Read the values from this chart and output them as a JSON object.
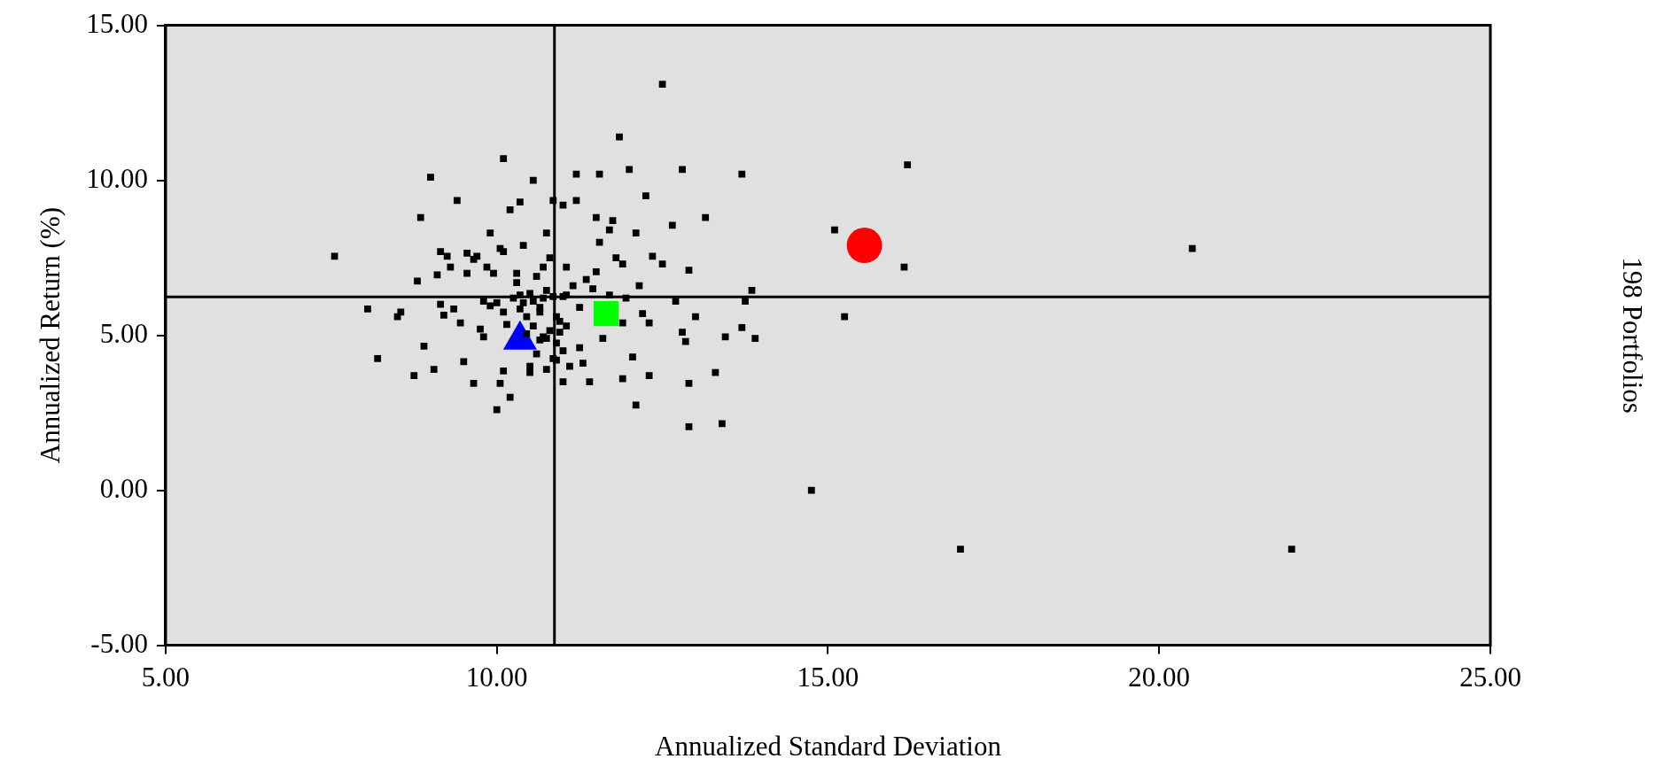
{
  "chart_data": {
    "type": "scatter",
    "xlabel": "Annualized Standard Deviation",
    "ylabel": "Annualized Return (%)",
    "annotations": [
      "198 Portfolios"
    ],
    "xlim": [
      5,
      25
    ],
    "xticks": [
      {
        "value": 5,
        "label": "5.00"
      },
      {
        "value": 10,
        "label": "10.00"
      },
      {
        "value": 15,
        "label": "15.00"
      },
      {
        "value": 20,
        "label": "20.00"
      },
      {
        "value": 25,
        "label": "25.00"
      }
    ],
    "ylim": [
      -5,
      15
    ],
    "yticks": [
      {
        "value": -5,
        "label": "-5.00"
      },
      {
        "value": 0,
        "label": "0.00"
      },
      {
        "value": 5,
        "label": "5.00"
      },
      {
        "value": 10,
        "label": "10.00"
      },
      {
        "value": 15,
        "label": "15.00"
      }
    ],
    "grid": false,
    "legend": false,
    "ref_lines": [
      {
        "axis": "x",
        "value": 10.87,
        "color": "#000000"
      },
      {
        "axis": "y",
        "value": 6.24,
        "color": "#000000"
      }
    ],
    "series": [
      {
        "color": "#000000",
        "marker": "square",
        "x": [
          7.55,
          8.05,
          8.2,
          8.5,
          8.55,
          8.75,
          8.8,
          8.85,
          8.9,
          9.0,
          9.05,
          9.1,
          9.15,
          9.15,
          9.25,
          9.2,
          9.3,
          9.35,
          9.4,
          9.45,
          9.5,
          9.55,
          9.55,
          9.65,
          9.65,
          9.7,
          9.75,
          9.8,
          9.8,
          9.85,
          9.9,
          9.9,
          9.95,
          10.0,
          10.0,
          10.05,
          10.05,
          10.1,
          10.1,
          10.1,
          10.1,
          10.15,
          10.2,
          10.2,
          10.25,
          10.3,
          10.3,
          10.35,
          10.35,
          10.4,
          10.4,
          10.45,
          10.5,
          10.5,
          10.5,
          10.55,
          10.55,
          10.6,
          10.65,
          10.65,
          10.7,
          10.7,
          10.75,
          10.75,
          10.75,
          10.8,
          10.85,
          10.85,
          10.9,
          10.9,
          10.95,
          11.0,
          11.0,
          11.0,
          11.05,
          11.05,
          11.1,
          11.15,
          11.2,
          11.2,
          11.25,
          11.25,
          11.3,
          11.35,
          11.4,
          11.45,
          11.5,
          11.5,
          11.55,
          11.55,
          11.6,
          11.7,
          11.7,
          11.75,
          11.8,
          11.85,
          11.9,
          11.9,
          11.9,
          11.95,
          12.0,
          12.05,
          12.1,
          12.1,
          12.15,
          12.2,
          12.25,
          12.3,
          12.3,
          12.35,
          12.5,
          12.5,
          12.65,
          12.7,
          12.8,
          12.8,
          12.85,
          12.9,
          12.9,
          12.9,
          13.0,
          13.15,
          13.3,
          13.4,
          13.45,
          13.7,
          13.7,
          13.75,
          13.85,
          13.9,
          14.75,
          15.1,
          15.25,
          16.15,
          16.2,
          17.0,
          20.5,
          22.0,
          10.65,
          10.45,
          10.95,
          10.8,
          10.7,
          10.9,
          10.6,
          10.85,
          11.0,
          10.55,
          10.75,
          11.05,
          10.35
        ],
        "values": [
          7.55,
          5.85,
          4.25,
          5.6,
          5.75,
          3.7,
          6.75,
          8.8,
          4.65,
          10.1,
          3.9,
          6.95,
          7.7,
          6.0,
          7.55,
          5.65,
          7.2,
          5.85,
          9.35,
          5.4,
          4.15,
          7.0,
          7.65,
          7.45,
          3.45,
          7.55,
          5.2,
          6.1,
          4.95,
          7.2,
          8.3,
          5.95,
          7.0,
          6.05,
          2.6,
          7.8,
          3.45,
          10.7,
          7.7,
          5.75,
          3.85,
          5.35,
          9.05,
          3.0,
          6.2,
          7.0,
          6.7,
          9.3,
          5.85,
          7.9,
          6.05,
          5.05,
          6.35,
          4.0,
          3.8,
          10.0,
          5.3,
          6.9,
          4.85,
          5.9,
          7.2,
          6.2,
          8.3,
          4.9,
          3.9,
          7.5,
          9.35,
          6.25,
          5.6,
          4.2,
          5.1,
          9.2,
          6.25,
          3.5,
          7.2,
          5.3,
          4.0,
          6.6,
          10.2,
          9.35,
          5.9,
          4.6,
          4.1,
          6.8,
          3.5,
          6.5,
          8.8,
          7.05,
          10.2,
          8.0,
          4.9,
          8.4,
          6.3,
          8.7,
          7.5,
          11.4,
          7.3,
          5.4,
          3.6,
          6.2,
          10.35,
          4.3,
          8.3,
          2.75,
          6.6,
          5.7,
          9.5,
          5.4,
          3.7,
          7.55,
          13.1,
          7.3,
          8.55,
          6.1,
          10.35,
          5.1,
          4.8,
          7.1,
          3.45,
          2.05,
          5.6,
          8.8,
          3.8,
          2.15,
          4.95,
          10.2,
          5.25,
          6.1,
          6.45,
          4.9,
          0.0,
          8.4,
          5.6,
          7.2,
          10.5,
          -1.9,
          7.8,
          -1.9,
          5.75,
          5.6,
          5.45,
          5.15,
          4.95,
          4.75,
          4.4,
          4.25,
          4.5,
          6.1,
          6.45,
          6.3,
          6.3
        ]
      },
      {
        "color": "#ff0000",
        "marker": "circle",
        "x": [
          15.55
        ],
        "values": [
          7.9
        ]
      },
      {
        "color": "#00ff00",
        "marker": "square",
        "x": [
          11.65
        ],
        "values": [
          5.7
        ]
      },
      {
        "color": "#0000ff",
        "marker": "triangle",
        "x": [
          10.35
        ],
        "values": [
          4.85
        ]
      }
    ]
  }
}
